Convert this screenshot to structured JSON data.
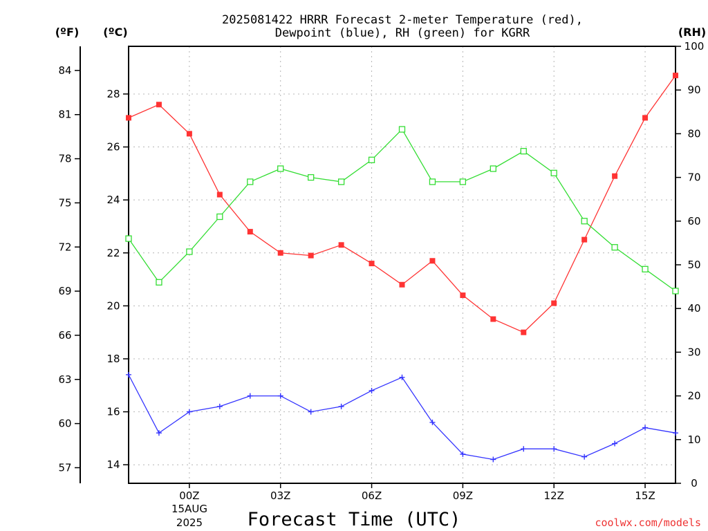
{
  "chart_data": {
    "type": "line",
    "title_line1": "2025081422 HRRR Forecast 2-meter Temperature (red),",
    "title_line2": "Dewpoint (blue), RH (green) for KGRR",
    "xlabel": "Forecast Time (UTC)",
    "credit": "coolwx.com/models",
    "units": {
      "fahrenheit": "(ºF)",
      "celsius": "(ºC)",
      "rh": "(RH)"
    },
    "x": [
      -2,
      -1,
      0,
      1,
      2,
      3,
      4,
      5,
      6,
      7,
      8,
      9,
      10,
      11,
      12,
      13,
      14,
      15,
      16
    ],
    "x_ticks": [
      {
        "x": 0,
        "label": "00Z"
      },
      {
        "x": 3,
        "label": "03Z"
      },
      {
        "x": 6,
        "label": "06Z"
      },
      {
        "x": 9,
        "label": "09Z"
      },
      {
        "x": 12,
        "label": "12Z"
      },
      {
        "x": 15,
        "label": "15Z"
      }
    ],
    "date_label_line1": "15AUG",
    "date_label_line2": "2025",
    "xlim": [
      -2,
      16
    ],
    "celsius_axis": {
      "ylim": [
        13.3,
        29.8
      ],
      "ticks": [
        14,
        16,
        18,
        20,
        22,
        24,
        26,
        28
      ]
    },
    "fahrenheit_axis": {
      "ticks": [
        57,
        60,
        63,
        66,
        69,
        72,
        75,
        78,
        81,
        84
      ]
    },
    "rh_axis": {
      "ylim": [
        0,
        100
      ],
      "ticks": [
        0,
        10,
        20,
        30,
        40,
        50,
        60,
        70,
        80,
        90,
        100
      ]
    },
    "series": [
      {
        "key": "temperature",
        "axis": "celsius",
        "color": "#ff3333",
        "marker": "filled-square",
        "values": [
          27.1,
          27.6,
          26.5,
          24.2,
          22.8,
          22.0,
          21.9,
          22.3,
          21.6,
          20.8,
          21.7,
          20.4,
          19.5,
          19.0,
          20.1,
          22.5,
          24.9,
          27.1,
          28.7
        ]
      },
      {
        "key": "dewpoint",
        "axis": "celsius",
        "color": "#3333ff",
        "marker": "plus",
        "values": [
          17.4,
          15.2,
          16.0,
          16.2,
          16.6,
          16.6,
          16.0,
          16.2,
          16.8,
          17.3,
          15.6,
          14.4,
          14.2,
          14.6,
          14.6,
          14.3,
          14.8,
          15.4,
          15.2
        ]
      },
      {
        "key": "rh",
        "axis": "rh",
        "color": "#33dd33",
        "marker": "open-square",
        "values": [
          56,
          46,
          53,
          61,
          69,
          72,
          70,
          69,
          74,
          81,
          69,
          69,
          72,
          76,
          71,
          60,
          54,
          49,
          44
        ]
      }
    ]
  }
}
